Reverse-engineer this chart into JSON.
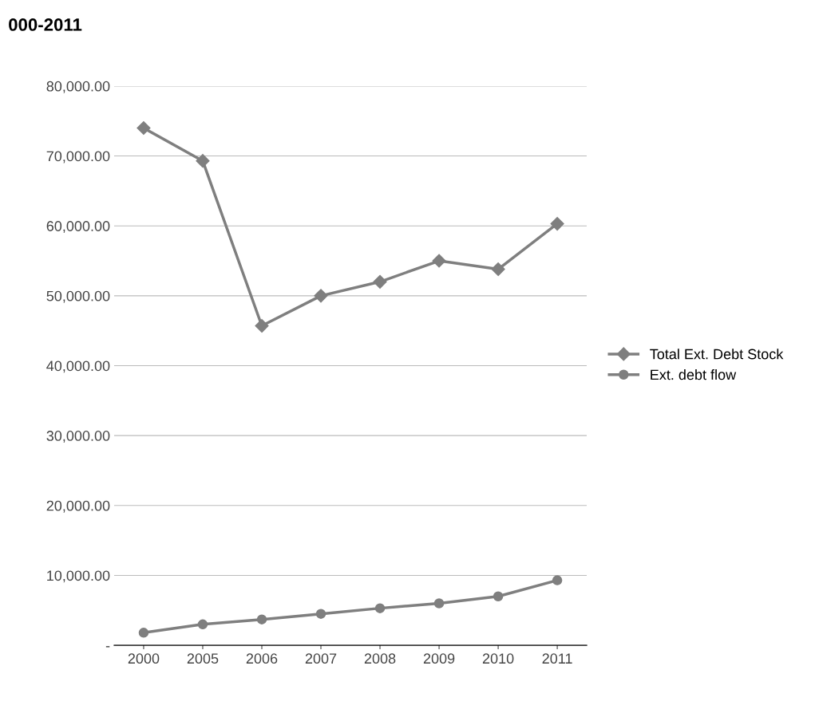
{
  "chart_data": {
    "type": "line",
    "title": "000-2011",
    "categories": [
      "2000",
      "2005",
      "2006",
      "2007",
      "2008",
      "2009",
      "2010",
      "2011"
    ],
    "series": [
      {
        "name": "Total Ext. Debt Stock",
        "color": "#7f7f7f",
        "marker": "diamond",
        "values": [
          74000,
          69300,
          45700,
          50000,
          52000,
          55000,
          53800,
          60300
        ]
      },
      {
        "name": "Ext. debt flow",
        "color": "#7f7f7f",
        "marker": "circle",
        "values": [
          1800,
          3000,
          3700,
          4500,
          5300,
          6000,
          7000,
          9300
        ]
      }
    ],
    "ylim": [
      0,
      80000
    ],
    "yticks": [
      {
        "value": 0,
        "label": "-"
      },
      {
        "value": 10000,
        "label": "10,000.00"
      },
      {
        "value": 20000,
        "label": "20,000.00"
      },
      {
        "value": 30000,
        "label": "30,000.00"
      },
      {
        "value": 40000,
        "label": "40,000.00"
      },
      {
        "value": 50000,
        "label": "50,000.00"
      },
      {
        "value": 60000,
        "label": "60,000.00"
      },
      {
        "value": 70000,
        "label": "70,000.00"
      },
      {
        "value": 80000,
        "label": "80,000.00"
      }
    ],
    "grid": "y",
    "legend": "right"
  }
}
